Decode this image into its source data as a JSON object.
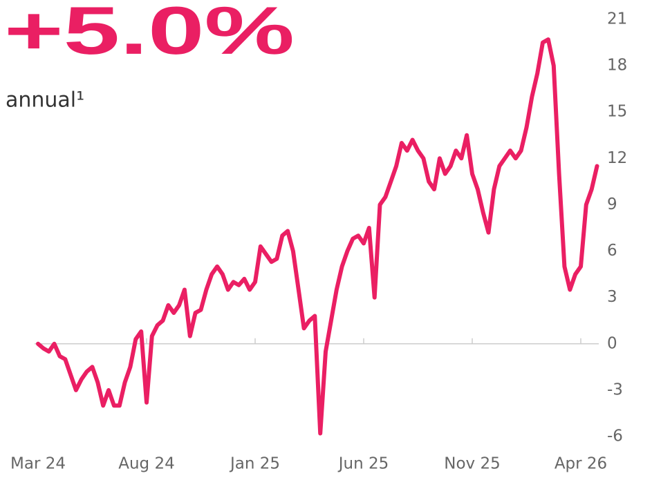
{
  "chart_data": {
    "type": "line",
    "title": "+5.0%",
    "subtitle": "annual¹",
    "categories": [
      "Mar 24",
      null,
      null,
      null,
      null,
      null,
      null,
      null,
      null,
      null,
      null,
      null,
      null,
      null,
      null,
      null,
      null,
      null,
      null,
      null,
      "Aug 24",
      null,
      null,
      null,
      null,
      null,
      null,
      null,
      null,
      null,
      null,
      null,
      null,
      null,
      null,
      null,
      null,
      null,
      null,
      null,
      "Jan 25",
      null,
      null,
      null,
      null,
      null,
      null,
      null,
      null,
      null,
      null,
      null,
      null,
      null,
      null,
      null,
      null,
      null,
      null,
      null,
      "Jun 25",
      null,
      null,
      null,
      null,
      null,
      null,
      null,
      null,
      null,
      null,
      null,
      null,
      null,
      null,
      null,
      null,
      null,
      null,
      null,
      "Nov 25",
      null,
      null,
      null,
      null,
      null,
      null,
      null,
      null,
      null,
      null,
      null,
      null,
      null,
      null,
      null,
      null,
      null,
      null,
      null,
      "Apr 26",
      null,
      null,
      null
    ],
    "values": [
      0,
      -0.3,
      -0.5,
      0,
      -0.8,
      -1,
      -2,
      -3,
      -2.3,
      -1.8,
      -1.5,
      -2.5,
      -4,
      -3,
      -4,
      -4,
      -2.5,
      -1.5,
      0.3,
      0.8,
      -3.8,
      0.5,
      1.2,
      1.5,
      2.5,
      2,
      2.5,
      3.5,
      0.5,
      2,
      2.2,
      3.5,
      4.5,
      5,
      4.5,
      3.5,
      4,
      3.8,
      4.2,
      3.5,
      4,
      6.3,
      5.8,
      5.3,
      5.5,
      7,
      7.3,
      6,
      3.5,
      1,
      1.5,
      1.8,
      -5.8,
      -0.5,
      1.5,
      3.5,
      5,
      6,
      6.8,
      7,
      6.5,
      7.5,
      3,
      9,
      9.5,
      10.5,
      11.5,
      13,
      12.5,
      13.2,
      12.5,
      12,
      10.5,
      10,
      12,
      11,
      11.5,
      12.5,
      12,
      13.5,
      11,
      10,
      8.5,
      7.2,
      10,
      11.5,
      12,
      12.5,
      12,
      12.5,
      14,
      16,
      17.5,
      19.5,
      19.7,
      18,
      11,
      5,
      3.5,
      4.5,
      5,
      9,
      10,
      11.5
    ],
    "color": "#ea1f63",
    "ylim": [
      -6,
      21
    ],
    "yticks": [
      -6,
      -3,
      0,
      3,
      6,
      9,
      12,
      15,
      18,
      21
    ],
    "grid": false
  }
}
